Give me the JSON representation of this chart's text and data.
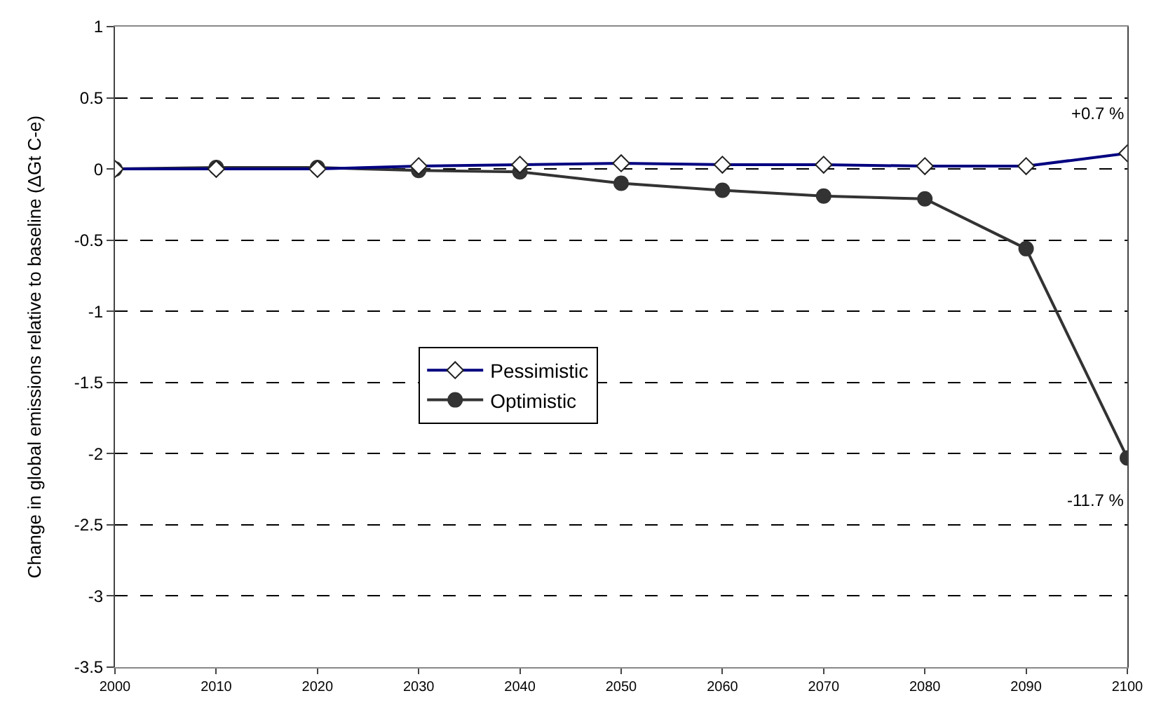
{
  "chart_data": {
    "type": "line",
    "ylabel": "Change in global emissions relative to baseline (ΔGt C-e)",
    "x": [
      2000,
      2010,
      2020,
      2030,
      2040,
      2050,
      2060,
      2070,
      2080,
      2090,
      2100
    ],
    "series": [
      {
        "name": "Pessimistic",
        "color": "#000080",
        "marker": "diamond",
        "values": [
          0,
          0,
          0,
          0.02,
          0.03,
          0.04,
          0.03,
          0.03,
          0.02,
          0.02,
          0.11
        ]
      },
      {
        "name": "Optimistic",
        "color": "#333333",
        "marker": "circle",
        "values": [
          0,
          0.01,
          0.01,
          -0.01,
          -0.02,
          -0.1,
          -0.15,
          -0.19,
          -0.21,
          -0.56,
          -2.03
        ]
      }
    ],
    "annotations": [
      {
        "text": "+0.7 %",
        "x": 2100,
        "y": 0.11
      },
      {
        "text": "-11.7 %",
        "x": 2100,
        "y": -2.03
      }
    ],
    "xlim": [
      2000,
      2100
    ],
    "xticks": [
      2000,
      2010,
      2020,
      2030,
      2040,
      2050,
      2060,
      2070,
      2080,
      2090,
      2100
    ],
    "ylim": [
      -3.5,
      1
    ],
    "yticks": [
      -3.5,
      -3,
      -2.5,
      -2,
      -1.5,
      -1,
      -0.5,
      0,
      0.5,
      1
    ],
    "grid": "y",
    "legend": "center left"
  }
}
